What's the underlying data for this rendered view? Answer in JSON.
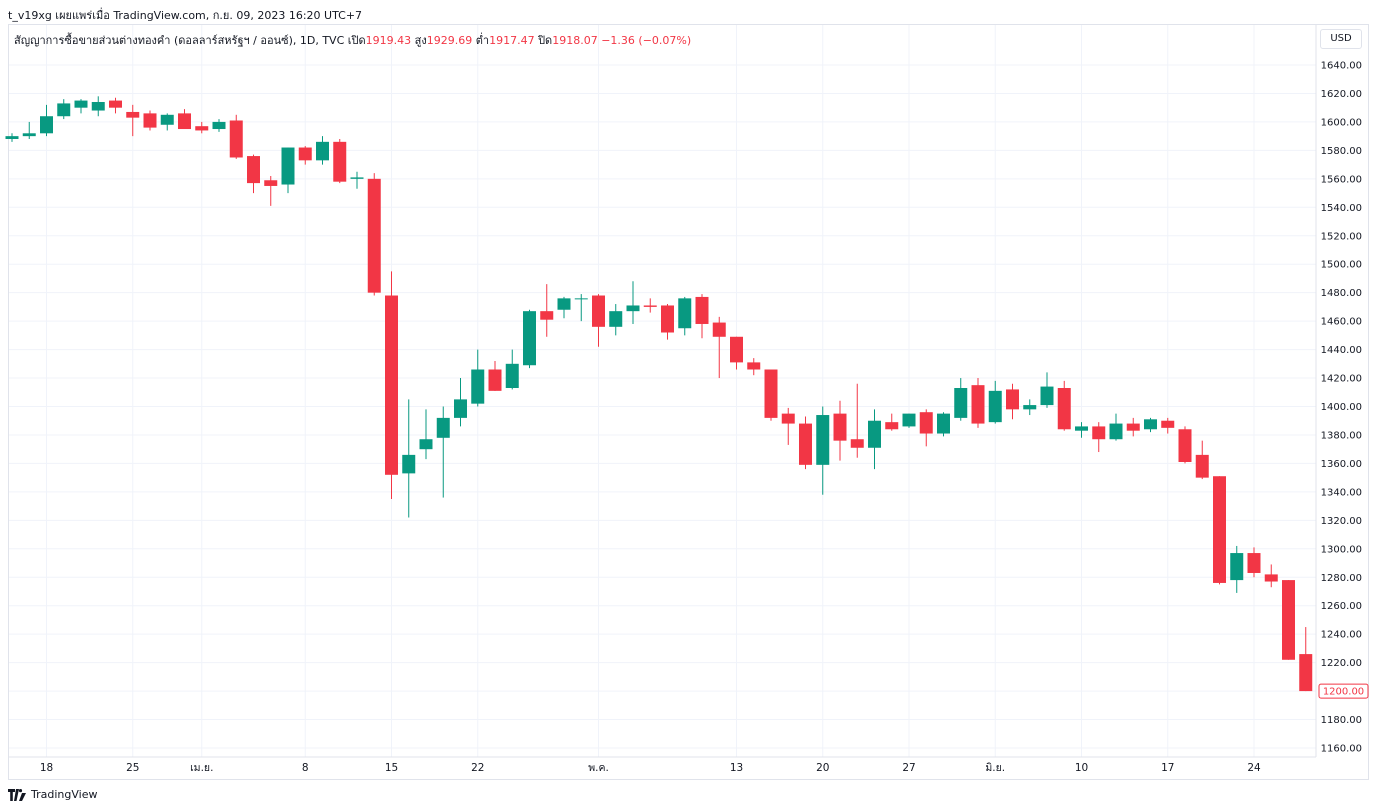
{
  "top_caption": "t_v19xg เผยแพร่เมื่อ TradingView.com, ก.ย. 09, 2023 16:20 UTC+7",
  "legend": {
    "symbol": "สัญญาการซื้อขายส่วนต่างทองคำ (ดอลลาร์สหรัฐฯ / ออนซ์), 1D, TVC",
    "open_label": "เปิด",
    "open": "1919.43",
    "high_label": "สูง",
    "high": "1929.69",
    "low_label": "ต่ำ",
    "low": "1917.47",
    "close_label": "ปิด",
    "close": "1918.07",
    "change": "−1.36 (−0.07%)"
  },
  "currency": "USD",
  "footer": {
    "brand": "TradingView"
  },
  "colors": {
    "up": "#089981",
    "down": "#f23645",
    "grid": "#f0f3fa",
    "text": "#131722"
  },
  "chart_data": {
    "type": "candlestick",
    "ylim": [
      1150,
      1650
    ],
    "y_ticks": [
      "1640.00",
      "1620.00",
      "1600.00",
      "1580.00",
      "1560.00",
      "1540.00",
      "1520.00",
      "1500.00",
      "1480.00",
      "1460.00",
      "1440.00",
      "1420.00",
      "1400.00",
      "1380.00",
      "1360.00",
      "1340.00",
      "1320.00",
      "1300.00",
      "1280.00",
      "1260.00",
      "1240.00",
      "1220.00",
      "1200.00",
      "1180.00",
      "1160.00"
    ],
    "x_ticks": [
      {
        "i": 2,
        "label": "18"
      },
      {
        "i": 7,
        "label": "25"
      },
      {
        "i": 11,
        "label": "เม.ย."
      },
      {
        "i": 17,
        "label": "8"
      },
      {
        "i": 22,
        "label": "15"
      },
      {
        "i": 27,
        "label": "22"
      },
      {
        "i": 34,
        "label": "พ.ค."
      },
      {
        "i": 42,
        "label": "13"
      },
      {
        "i": 47,
        "label": "20"
      },
      {
        "i": 52,
        "label": "27"
      },
      {
        "i": 57,
        "label": "มิ.ย."
      },
      {
        "i": 62,
        "label": "10"
      },
      {
        "i": 67,
        "label": "17"
      },
      {
        "i": 72,
        "label": "24"
      }
    ],
    "last_price": "1200.00",
    "candles": [
      {
        "o": 1588,
        "h": 1592,
        "l": 1586,
        "c": 1590
      },
      {
        "o": 1590,
        "h": 1600,
        "l": 1588,
        "c": 1592
      },
      {
        "o": 1592,
        "h": 1612,
        "l": 1590,
        "c": 1604
      },
      {
        "o": 1604,
        "h": 1616,
        "l": 1602,
        "c": 1613
      },
      {
        "o": 1610,
        "h": 1616,
        "l": 1606,
        "c": 1615
      },
      {
        "o": 1608,
        "h": 1618,
        "l": 1604,
        "c": 1614
      },
      {
        "o": 1615,
        "h": 1617,
        "l": 1606,
        "c": 1610
      },
      {
        "o": 1607,
        "h": 1612,
        "l": 1590,
        "c": 1603
      },
      {
        "o": 1606,
        "h": 1608,
        "l": 1594,
        "c": 1596
      },
      {
        "o": 1598,
        "h": 1606,
        "l": 1594,
        "c": 1605
      },
      {
        "o": 1606,
        "h": 1609,
        "l": 1595,
        "c": 1595
      },
      {
        "o": 1597,
        "h": 1600,
        "l": 1592,
        "c": 1594
      },
      {
        "o": 1595,
        "h": 1602,
        "l": 1593,
        "c": 1600
      },
      {
        "o": 1601,
        "h": 1605,
        "l": 1574,
        "c": 1575
      },
      {
        "o": 1576,
        "h": 1577,
        "l": 1550,
        "c": 1557
      },
      {
        "o": 1559,
        "h": 1562,
        "l": 1541,
        "c": 1555
      },
      {
        "o": 1556,
        "h": 1582,
        "l": 1550,
        "c": 1582
      },
      {
        "o": 1582,
        "h": 1583,
        "l": 1570,
        "c": 1573
      },
      {
        "o": 1573,
        "h": 1590,
        "l": 1570,
        "c": 1586
      },
      {
        "o": 1586,
        "h": 1588,
        "l": 1557,
        "c": 1558
      },
      {
        "o": 1560,
        "h": 1565,
        "l": 1553,
        "c": 1561
      },
      {
        "o": 1560,
        "h": 1564,
        "l": 1478,
        "c": 1480
      },
      {
        "o": 1478,
        "h": 1495,
        "l": 1335,
        "c": 1352
      },
      {
        "o": 1353,
        "h": 1405,
        "l": 1322,
        "c": 1366
      },
      {
        "o": 1370,
        "h": 1398,
        "l": 1363,
        "c": 1377
      },
      {
        "o": 1378,
        "h": 1400,
        "l": 1336,
        "c": 1392
      },
      {
        "o": 1392,
        "h": 1420,
        "l": 1386,
        "c": 1405
      },
      {
        "o": 1402,
        "h": 1440,
        "l": 1400,
        "c": 1426
      },
      {
        "o": 1426,
        "h": 1432,
        "l": 1411,
        "c": 1411
      },
      {
        "o": 1413,
        "h": 1440,
        "l": 1412,
        "c": 1430
      },
      {
        "o": 1429,
        "h": 1468,
        "l": 1427,
        "c": 1467
      },
      {
        "o": 1467,
        "h": 1486,
        "l": 1449,
        "c": 1461
      },
      {
        "o": 1468,
        "h": 1477,
        "l": 1462,
        "c": 1476
      },
      {
        "o": 1476,
        "h": 1479,
        "l": 1460,
        "c": 1476
      },
      {
        "o": 1478,
        "h": 1479,
        "l": 1442,
        "c": 1456
      },
      {
        "o": 1456,
        "h": 1472,
        "l": 1450,
        "c": 1467
      },
      {
        "o": 1467,
        "h": 1488,
        "l": 1458,
        "c": 1471
      },
      {
        "o": 1471,
        "h": 1476,
        "l": 1466,
        "c": 1470
      },
      {
        "o": 1471,
        "h": 1472,
        "l": 1447,
        "c": 1452
      },
      {
        "o": 1455,
        "h": 1477,
        "l": 1450,
        "c": 1476
      },
      {
        "o": 1477,
        "h": 1479,
        "l": 1448,
        "c": 1458
      },
      {
        "o": 1459,
        "h": 1463,
        "l": 1420,
        "c": 1449
      },
      {
        "o": 1449,
        "h": 1449,
        "l": 1426,
        "c": 1431
      },
      {
        "o": 1431,
        "h": 1434,
        "l": 1422,
        "c": 1426
      },
      {
        "o": 1426,
        "h": 1426,
        "l": 1390,
        "c": 1392
      },
      {
        "o": 1395,
        "h": 1399,
        "l": 1373,
        "c": 1388
      },
      {
        "o": 1388,
        "h": 1393,
        "l": 1356,
        "c": 1359
      },
      {
        "o": 1359,
        "h": 1400,
        "l": 1338,
        "c": 1394
      },
      {
        "o": 1395,
        "h": 1404,
        "l": 1362,
        "c": 1376
      },
      {
        "o": 1377,
        "h": 1416,
        "l": 1364,
        "c": 1371
      },
      {
        "o": 1371,
        "h": 1398,
        "l": 1356,
        "c": 1390
      },
      {
        "o": 1389,
        "h": 1395,
        "l": 1383,
        "c": 1384
      },
      {
        "o": 1386,
        "h": 1395,
        "l": 1385,
        "c": 1395
      },
      {
        "o": 1396,
        "h": 1398,
        "l": 1372,
        "c": 1381
      },
      {
        "o": 1381,
        "h": 1396,
        "l": 1379,
        "c": 1395
      },
      {
        "o": 1392,
        "h": 1420,
        "l": 1390,
        "c": 1413
      },
      {
        "o": 1415,
        "h": 1420,
        "l": 1385,
        "c": 1388
      },
      {
        "o": 1389,
        "h": 1418,
        "l": 1388,
        "c": 1411
      },
      {
        "o": 1412,
        "h": 1416,
        "l": 1391,
        "c": 1398
      },
      {
        "o": 1398,
        "h": 1405,
        "l": 1394,
        "c": 1401
      },
      {
        "o": 1401,
        "h": 1424,
        "l": 1399,
        "c": 1414
      },
      {
        "o": 1413,
        "h": 1418,
        "l": 1383,
        "c": 1384
      },
      {
        "o": 1383,
        "h": 1389,
        "l": 1378,
        "c": 1386
      },
      {
        "o": 1386,
        "h": 1389,
        "l": 1368,
        "c": 1377
      },
      {
        "o": 1377,
        "h": 1395,
        "l": 1376,
        "c": 1388
      },
      {
        "o": 1388,
        "h": 1392,
        "l": 1379,
        "c": 1383
      },
      {
        "o": 1384,
        "h": 1392,
        "l": 1382,
        "c": 1391
      },
      {
        "o": 1390,
        "h": 1392,
        "l": 1381,
        "c": 1385
      },
      {
        "o": 1384,
        "h": 1386,
        "l": 1360,
        "c": 1361
      },
      {
        "o": 1366,
        "h": 1376,
        "l": 1349,
        "c": 1350
      },
      {
        "o": 1351,
        "h": 1351,
        "l": 1275,
        "c": 1276
      },
      {
        "o": 1278,
        "h": 1302,
        "l": 1269,
        "c": 1297
      },
      {
        "o": 1297,
        "h": 1301,
        "l": 1280,
        "c": 1283
      },
      {
        "o": 1282,
        "h": 1289,
        "l": 1273,
        "c": 1277
      },
      {
        "o": 1278,
        "h": 1278,
        "l": 1222,
        "c": 1222
      },
      {
        "o": 1226,
        "h": 1245,
        "l": 1200,
        "c": 1200
      }
    ]
  }
}
